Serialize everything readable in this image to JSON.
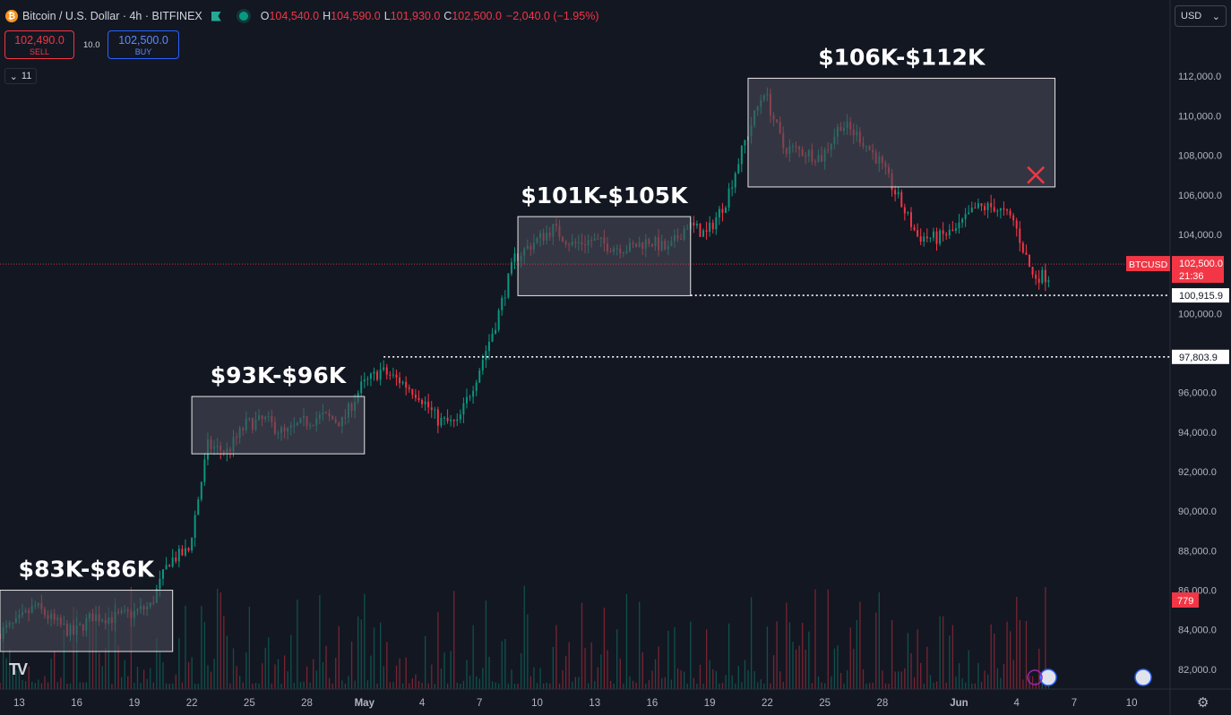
{
  "header": {
    "coin_symbol": "₿",
    "title": "Bitcoin / U.S. Dollar · 4h · BITFINEX",
    "ohlc": [
      {
        "label": "O",
        "value": "104,540.0"
      },
      {
        "label": "H",
        "value": "104,590.0"
      },
      {
        "label": "L",
        "value": "101,930.0"
      },
      {
        "label": "C",
        "value": "102,500.0"
      }
    ],
    "change": "−2,040.0 (−1.95%)"
  },
  "trade": {
    "sell_price": "102,490.0",
    "sell_label": "SELL",
    "spread": "10.0",
    "buy_price": "102,500.0",
    "buy_label": "BUY"
  },
  "indicators_toggle": {
    "count": "11"
  },
  "currency": {
    "selected": "USD"
  },
  "logo_text": "TV",
  "colors": {
    "up": "#089981",
    "down": "#f23645",
    "background": "#131722",
    "range_box": "#474a55"
  },
  "chart_data": {
    "type": "candlestick",
    "instrument": "Bitcoin / U.S. Dollar",
    "timeframe": "4h",
    "exchange": "BITFINEX",
    "y_ticks": [
      82000,
      84000,
      86000,
      88000,
      90000,
      92000,
      94000,
      96000,
      100000,
      104000,
      106000,
      108000,
      110000,
      112000
    ],
    "y_tick_labels": [
      "82,000.0",
      "84,000.0",
      "86,000.0",
      "88,000.0",
      "90,000.0",
      "92,000.0",
      "94,000.0",
      "96,000.0",
      "100,000.0",
      "104,000.0",
      "106,000.0",
      "108,000.0",
      "110,000.0",
      "112,000.0"
    ],
    "ylim": [
      81000,
      114500
    ],
    "x_tick_labels": [
      "13",
      "16",
      "19",
      "22",
      "25",
      "28",
      "May",
      "4",
      "7",
      "10",
      "13",
      "16",
      "19",
      "22",
      "25",
      "28",
      "Jun",
      "4",
      "7",
      "10"
    ],
    "x_range": [
      "2025-04-12",
      "2025-06-12"
    ],
    "anchors": [
      [
        "2025-04-12",
        83800
      ],
      [
        "2025-04-13",
        84300
      ],
      [
        "2025-04-14",
        85200
      ],
      [
        "2025-04-15",
        84400
      ],
      [
        "2025-04-16",
        83800
      ],
      [
        "2025-04-17",
        84700
      ],
      [
        "2025-04-18",
        84600
      ],
      [
        "2025-04-19",
        84800
      ],
      [
        "2025-04-20",
        85200
      ],
      [
        "2025-04-21",
        87500
      ],
      [
        "2025-04-22",
        88000
      ],
      [
        "2025-04-23",
        93300
      ],
      [
        "2025-04-24",
        93000
      ],
      [
        "2025-04-25",
        94400
      ],
      [
        "2025-04-26",
        94600
      ],
      [
        "2025-04-27",
        93900
      ],
      [
        "2025-04-28",
        94500
      ],
      [
        "2025-04-29",
        94800
      ],
      [
        "2025-04-30",
        94500
      ],
      [
        "2025-05-01",
        96300
      ],
      [
        "2025-05-02",
        97100
      ],
      [
        "2025-05-03",
        96600
      ],
      [
        "2025-05-04",
        95900
      ],
      [
        "2025-05-05",
        94600
      ],
      [
        "2025-05-06",
        94400
      ],
      [
        "2025-05-07",
        96800
      ],
      [
        "2025-05-08",
        99500
      ],
      [
        "2025-05-09",
        102800
      ],
      [
        "2025-05-10",
        103600
      ],
      [
        "2025-05-11",
        104300
      ],
      [
        "2025-05-12",
        103500
      ],
      [
        "2025-05-13",
        103700
      ],
      [
        "2025-05-14",
        103400
      ],
      [
        "2025-05-15",
        103300
      ],
      [
        "2025-05-16",
        103700
      ],
      [
        "2025-05-17",
        103200
      ],
      [
        "2025-05-18",
        104500
      ],
      [
        "2025-05-19",
        104000
      ],
      [
        "2025-05-20",
        105700
      ],
      [
        "2025-05-21",
        108700
      ],
      [
        "2025-05-22",
        111300
      ],
      [
        "2025-05-23",
        108400
      ],
      [
        "2025-05-24",
        108200
      ],
      [
        "2025-05-25",
        107900
      ],
      [
        "2025-05-26",
        109600
      ],
      [
        "2025-05-27",
        108900
      ],
      [
        "2025-05-28",
        107700
      ],
      [
        "2025-05-29",
        105800
      ],
      [
        "2025-05-30",
        103900
      ],
      [
        "2025-05-31",
        103800
      ],
      [
        "2025-06-01",
        104200
      ],
      [
        "2025-06-02",
        105300
      ],
      [
        "2025-06-03",
        105400
      ],
      [
        "2025-06-04",
        104700
      ],
      [
        "2025-06-05",
        101900
      ]
    ],
    "last_price": 102500,
    "last_price_label": "102,500.0",
    "last_symbol": "BTCUSD",
    "countdown": "21:36",
    "ranges": [
      {
        "label": "$83K-$86K",
        "start": "2025-04-12",
        "end": "2025-04-21",
        "low": 82900,
        "high": 86000
      },
      {
        "label": "$93K-$96K",
        "start": "2025-04-22",
        "end": "2025-05-01",
        "low": 92900,
        "high": 95800
      },
      {
        "label": "$101K-$105K",
        "start": "2025-05-09",
        "end": "2025-05-18",
        "low": 100900,
        "high": 104900
      },
      {
        "label": "$106K-$112K",
        "start": "2025-05-21",
        "end": "2025-06-06",
        "low": 106400,
        "high": 111900
      }
    ],
    "levels": [
      {
        "value": 100915.9,
        "label": "100,915.9",
        "start": "2025-05-18"
      },
      {
        "value": 97803.9,
        "label": "97,803.9",
        "start": "2025-05-02"
      }
    ],
    "cross_marker": {
      "date": "2025-06-05",
      "value": 107000
    },
    "volume_badge": "779"
  }
}
